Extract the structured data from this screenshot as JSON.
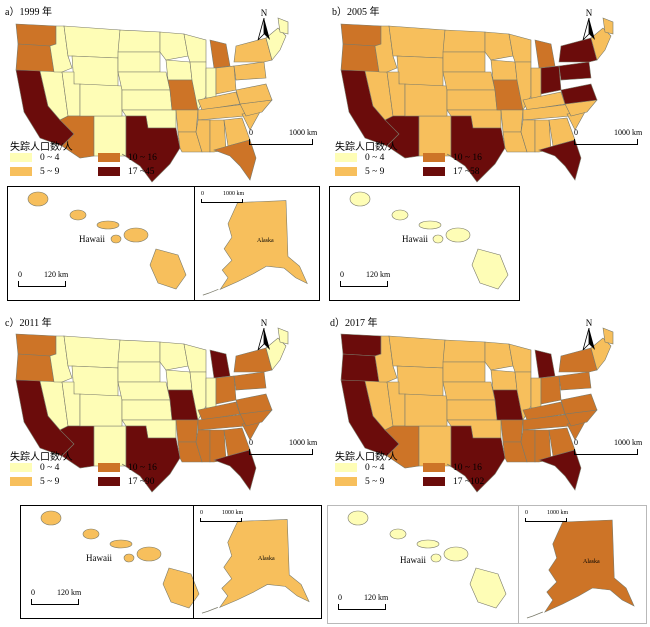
{
  "colors": {
    "c1": "#fefdb6",
    "c2": "#f7bf5c",
    "c3": "#cd7427",
    "c4": "#6b0c0b",
    "border": "#7a7a6a"
  },
  "legend_title": "失踪人口数/人",
  "scale_main": "1000 km",
  "scale_hawaii": "120 km",
  "scale_alaska": "1000 km",
  "scale_zero": "0",
  "north_letter": "N",
  "hawaii_label": "Hawaii",
  "alaska_label": "Alaska",
  "panels": [
    {
      "label": "a）1999 年",
      "legend": [
        "0 ~ 4",
        "5 ~ 9",
        "10 ~ 16",
        "17 ~45"
      ],
      "west_fill": "c4",
      "nw_fill": "c3",
      "sw_fill": "c3",
      "texas_fill": "c4",
      "midwest_fill": "c1",
      "lakes_fill": "c3",
      "southeast_fill": "c2",
      "florida_fill": "c3",
      "northeast_fill": "c2",
      "alaska_fill": "c2",
      "hawaii_fill": "c2"
    },
    {
      "label": "b）2005 年",
      "legend": [
        "0 ~ 4",
        "5 ~ 9",
        "10 ~ 16",
        "17 ~58"
      ],
      "west_fill": "c4",
      "nw_fill": "c3",
      "sw_fill": "c4",
      "texas_fill": "c4",
      "midwest_fill": "c2",
      "lakes_fill": "c3",
      "southeast_fill": "c2",
      "florida_fill": "c4",
      "northeast_fill": "c4",
      "alaska_fill": "c2",
      "hawaii_fill": "c1"
    },
    {
      "label": "c）2011 年",
      "legend": [
        "0 ~ 4",
        "5 ~ 9",
        "10 ~ 16",
        "17 ~90"
      ],
      "west_fill": "c4",
      "nw_fill": "c3",
      "sw_fill": "c4",
      "texas_fill": "c4",
      "midwest_fill": "c1",
      "lakes_fill": "c4",
      "southeast_fill": "c3",
      "florida_fill": "c4",
      "northeast_fill": "c3",
      "alaska_fill": "c2",
      "hawaii_fill": "c2"
    },
    {
      "label": "d）2017 年",
      "legend": [
        "0 ~ 4",
        "5 ~ 9",
        "10 ~ 16",
        "17 ~102"
      ],
      "west_fill": "c4",
      "nw_fill": "c4",
      "sw_fill": "c3",
      "texas_fill": "c4",
      "midwest_fill": "c2",
      "lakes_fill": "c4",
      "southeast_fill": "c3",
      "florida_fill": "c4",
      "northeast_fill": "c3",
      "alaska_fill": "c3",
      "hawaii_fill": "c1"
    }
  ]
}
